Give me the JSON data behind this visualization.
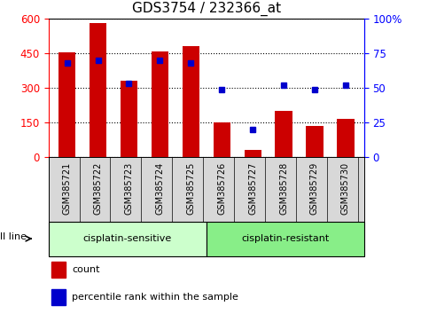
{
  "title": "GDS3754 / 232366_at",
  "samples": [
    "GSM385721",
    "GSM385722",
    "GSM385723",
    "GSM385724",
    "GSM385725",
    "GSM385726",
    "GSM385727",
    "GSM385728",
    "GSM385729",
    "GSM385730"
  ],
  "counts": [
    455,
    580,
    330,
    460,
    480,
    150,
    30,
    200,
    135,
    165
  ],
  "percentile_ranks": [
    68,
    70,
    53,
    70,
    68,
    49,
    20,
    52,
    49,
    52
  ],
  "bar_color": "#cc0000",
  "dot_color": "#0000cc",
  "left_ylim": [
    0,
    600
  ],
  "left_yticks": [
    0,
    150,
    300,
    450,
    600
  ],
  "right_ylim": [
    0,
    100
  ],
  "right_yticks": [
    0,
    25,
    50,
    75,
    100
  ],
  "right_yticklabels": [
    "0",
    "25",
    "50",
    "75",
    "100%"
  ],
  "groups": [
    {
      "label": "cisplatin-sensitive",
      "start": 0,
      "end": 5,
      "color": "#ccffcc"
    },
    {
      "label": "cisplatin-resistant",
      "start": 5,
      "end": 10,
      "color": "#88ee88"
    }
  ],
  "cell_line_label": "cell line",
  "legend_count_label": "count",
  "legend_pct_label": "percentile rank within the sample",
  "bg_color": "#ffffff",
  "title_fontsize": 11,
  "bar_width": 0.55
}
